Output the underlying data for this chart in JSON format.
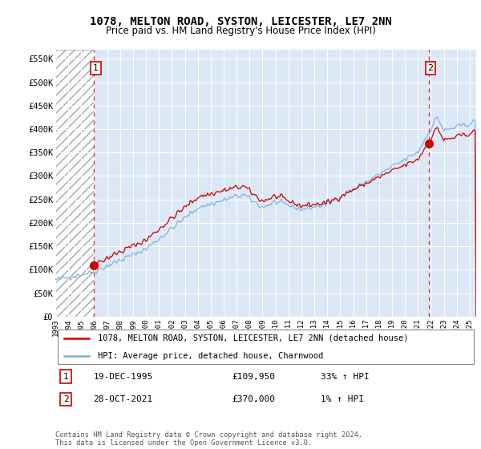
{
  "title": "1078, MELTON ROAD, SYSTON, LEICESTER, LE7 2NN",
  "subtitle": "Price paid vs. HM Land Registry's House Price Index (HPI)",
  "ylabel_ticks": [
    "£0",
    "£50K",
    "£100K",
    "£150K",
    "£200K",
    "£250K",
    "£300K",
    "£350K",
    "£400K",
    "£450K",
    "£500K",
    "£550K"
  ],
  "ytick_values": [
    0,
    50000,
    100000,
    150000,
    200000,
    250000,
    300000,
    350000,
    400000,
    450000,
    500000,
    550000
  ],
  "ylim": [
    0,
    570000
  ],
  "sale1": {
    "date_num": 1995.97,
    "price": 109950,
    "label": "1",
    "date_str": "19-DEC-1995",
    "price_str": "£109,950",
    "hpi_str": "33% ↑ HPI"
  },
  "sale2": {
    "date_num": 2021.83,
    "price": 370000,
    "label": "2",
    "date_str": "28-OCT-2021",
    "price_str": "£370,000",
    "hpi_str": "1% ↑ HPI"
  },
  "hpi_color": "#7aacdc",
  "sale_color": "#cc0000",
  "legend_label_sale": "1078, MELTON ROAD, SYSTON, LEICESTER, LE7 2NN (detached house)",
  "legend_label_hpi": "HPI: Average price, detached house, Charnwood",
  "copyright_text": "Contains HM Land Registry data © Crown copyright and database right 2024.\nThis data is licensed under the Open Government Licence v3.0.",
  "background_color": "#dce8f5",
  "plot_bg_color": "#dce8f5",
  "xlim_start": 1993.0,
  "xlim_end": 2025.5,
  "xtick_years": [
    1993,
    1994,
    1995,
    1996,
    1997,
    1998,
    1999,
    2000,
    2001,
    2002,
    2003,
    2004,
    2005,
    2006,
    2007,
    2008,
    2009,
    2010,
    2011,
    2012,
    2013,
    2014,
    2015,
    2016,
    2017,
    2018,
    2019,
    2020,
    2021,
    2022,
    2023,
    2024,
    2025
  ],
  "xtick_labels": [
    "1993",
    "1994",
    "1995",
    "1996",
    "1997",
    "1998",
    "1999",
    "2000",
    "2001",
    "2002",
    "2003",
    "2004",
    "2005",
    "2006",
    "2007",
    "2008",
    "2009",
    "2010",
    "2011",
    "2012",
    "2013",
    "2014",
    "2015",
    "2016",
    "2017",
    "2018",
    "2019",
    "2020",
    "2021",
    "2022",
    "2023",
    "2024",
    "2025"
  ]
}
